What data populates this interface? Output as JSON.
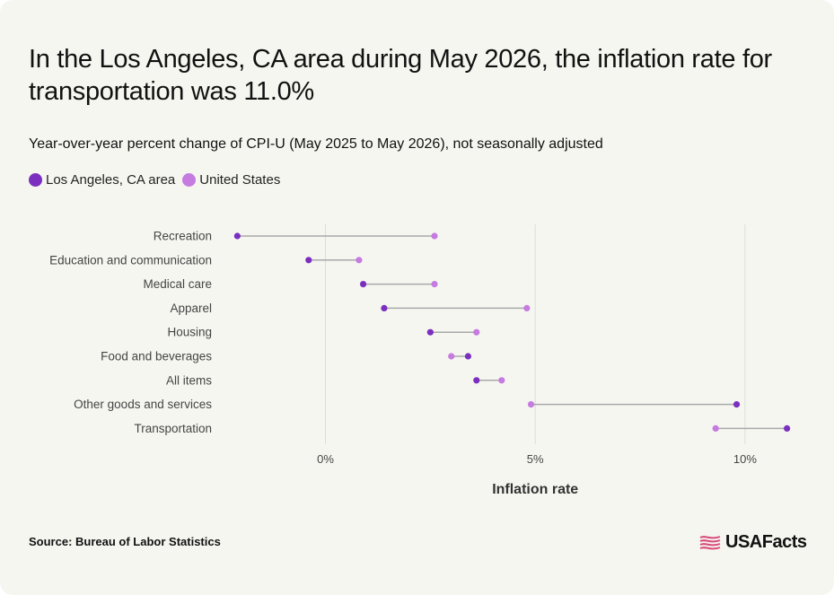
{
  "title": "In the Los Angeles, CA area during May 2026, the inflation rate for transportation was 11.0%",
  "subtitle": "Year-over-year percent change of CPI-U (May 2025 to May 2026), not seasonally adjusted",
  "legend": [
    {
      "label": "Los Angeles, CA area",
      "color": "#7b2fbf"
    },
    {
      "label": "United States",
      "color": "#c57be0"
    }
  ],
  "source": "Source: Bureau of Labor Statistics",
  "logo": {
    "text": "USAFacts",
    "icon": "flag-icon",
    "color": "#d94b7a"
  },
  "colors": {
    "connector": "#a8a8a8",
    "grid": "#dcdcdc",
    "label": "#444444"
  },
  "chart_data": {
    "type": "dumbbell",
    "xlabel": "Inflation rate",
    "xlim": [
      -2.3,
      11.5
    ],
    "xticks": [
      0,
      5,
      10
    ],
    "xtick_labels": [
      "0%",
      "5%",
      "10%"
    ],
    "categories": [
      "Recreation",
      "Education and communication",
      "Medical care",
      "Apparel",
      "Housing",
      "Food and beverages",
      "All items",
      "Other goods and services",
      "Transportation"
    ],
    "series": [
      {
        "name": "Los Angeles, CA area",
        "color": "#7b2fbf",
        "values": [
          -2.1,
          -0.4,
          0.9,
          1.4,
          2.5,
          3.4,
          3.6,
          9.8,
          11.0
        ]
      },
      {
        "name": "United States",
        "color": "#c57be0",
        "values": [
          2.6,
          0.8,
          2.6,
          4.8,
          3.6,
          3.0,
          4.2,
          4.9,
          9.3
        ]
      }
    ]
  }
}
